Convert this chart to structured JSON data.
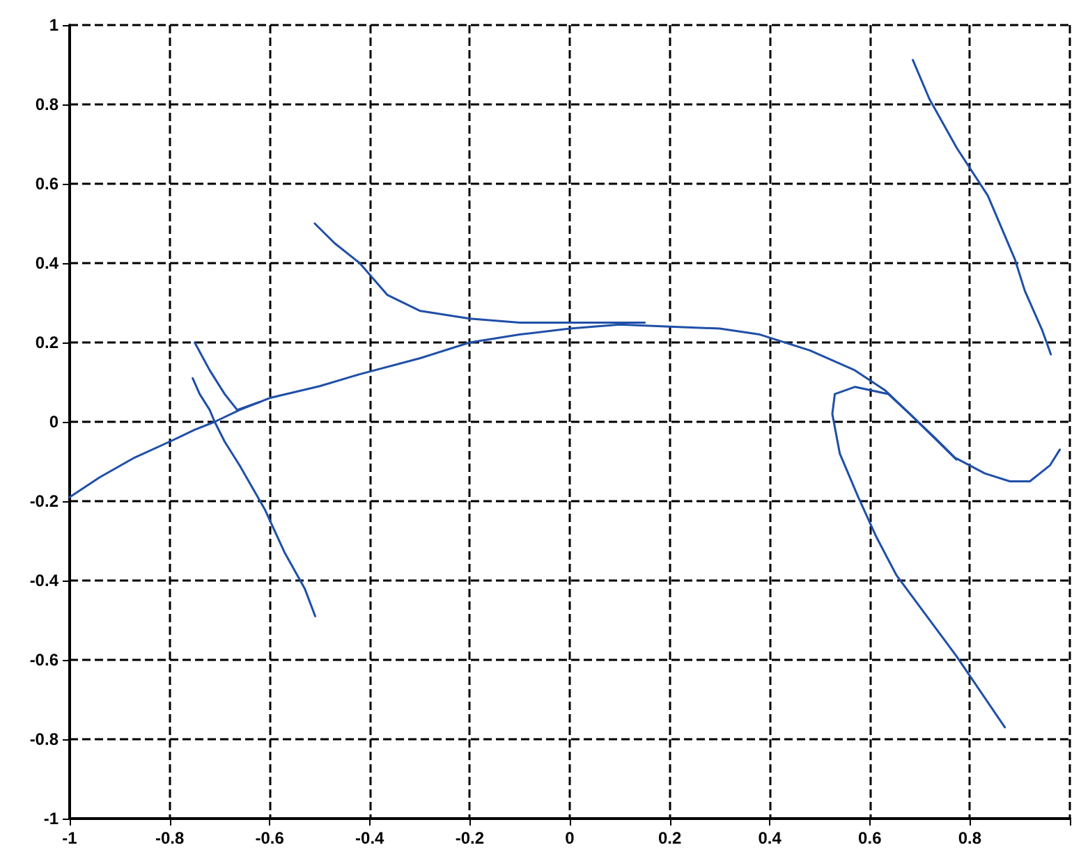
{
  "chart_data": {
    "type": "line",
    "xlim": [
      -1,
      1
    ],
    "ylim": [
      -1,
      1
    ],
    "xticks": [
      -1,
      -0.8,
      -0.6,
      -0.4,
      -0.2,
      0,
      0.2,
      0.4,
      0.6,
      0.8,
      {
        "value": 1,
        "label": null
      }
    ],
    "yticks": [
      -1,
      -0.8,
      -0.6,
      -0.4,
      -0.2,
      0,
      0.2,
      0.4,
      0.6,
      0.8,
      1
    ],
    "grid": true,
    "marker": "none",
    "line_style": "solid",
    "series": [
      {
        "color": "#1f4fa8",
        "x": [
          -1,
          -0.94,
          -0.87,
          -0.8,
          -0.75,
          -0.71,
          -0.66,
          -0.6,
          -0.5,
          -0.42,
          -0.3,
          -0.2,
          -0.1,
          0,
          0.1,
          0.2,
          0.3,
          0.38,
          0.48,
          0.57,
          0.63,
          0.68,
          0.73,
          0.77,
          0.83,
          0.88,
          0.92,
          0.94,
          0.96,
          0.98
        ],
        "values": [
          -0.19,
          -0.14,
          -0.09,
          -0.05,
          -0.02,
          0,
          0.03,
          0.06,
          0.09,
          0.12,
          0.16,
          0.2,
          0.22,
          0.235,
          0.245,
          0.24,
          0.235,
          0.22,
          0.18,
          0.13,
          0.08,
          0.02,
          -0.04,
          -0.09,
          -0.13,
          -0.15,
          -0.15,
          -0.13,
          -0.11,
          -0.07
        ]
      },
      {
        "color": "#1f4fa8",
        "x": [
          -0.51,
          -0.47,
          -0.42,
          -0.365,
          -0.3,
          -0.2,
          -0.1,
          0,
          0.15
        ],
        "values": [
          0.5,
          0.45,
          0.4,
          0.32,
          0.28,
          0.26,
          0.25,
          0.25,
          0.25
        ]
      },
      {
        "color": "#1f4fa8",
        "x": [
          -0.75,
          -0.72,
          -0.69,
          -0.665,
          -0.62
        ],
        "values": [
          0.2,
          0.13,
          0.07,
          0.03,
          0.05
        ]
      },
      {
        "color": "#1f4fa8",
        "x": [
          -0.754,
          -0.74,
          -0.72,
          -0.71,
          -0.69,
          -0.66,
          -0.61,
          -0.57,
          -0.53,
          -0.509
        ],
        "values": [
          0.11,
          0.07,
          0.03,
          0,
          -0.05,
          -0.11,
          -0.22,
          -0.33,
          -0.42,
          -0.49
        ]
      },
      {
        "color": "#1f4fa8",
        "x": [
          0.686,
          0.719,
          0.774,
          0.836,
          0.89,
          0.91,
          0.945,
          0.962
        ],
        "values": [
          0.912,
          0.814,
          0.69,
          0.57,
          0.41,
          0.33,
          0.23,
          0.17
        ]
      },
      {
        "color": "#1f4fa8",
        "x": [
          0.87,
          0.773,
          0.653,
          0.613,
          0.577,
          0.54,
          0.525,
          0.53,
          0.57,
          0.637,
          0.68,
          0.773
        ],
        "values": [
          -0.77,
          -0.59,
          -0.386,
          -0.29,
          -0.19,
          -0.08,
          0.02,
          0.07,
          0.088,
          0.07,
          0.02,
          -0.095
        ]
      }
    ]
  }
}
